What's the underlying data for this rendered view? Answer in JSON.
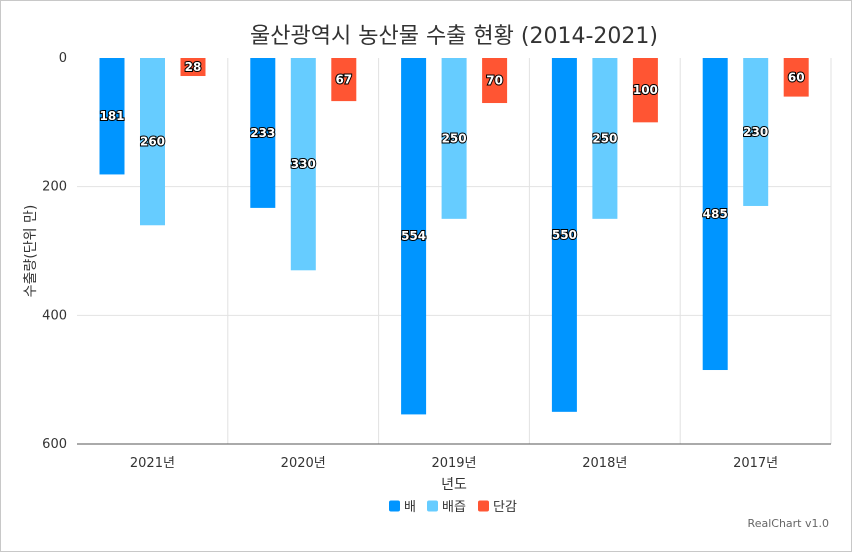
{
  "chart_data": {
    "type": "bar",
    "title": "울산광역시 농산물 수출 현황 (2014-2021)",
    "xlabel": "년도",
    "ylabel": "수출량(단위 만)",
    "categories": [
      "2021년",
      "2020년",
      "2019년",
      "2018년",
      "2017년"
    ],
    "series": [
      {
        "name": "배",
        "color": "#0095ff",
        "values": [
          181,
          233,
          554,
          550,
          485
        ]
      },
      {
        "name": "배즙",
        "color": "#66ccff",
        "values": [
          260,
          330,
          250,
          250,
          230
        ]
      },
      {
        "name": "단감",
        "color": "#ff5533",
        "values": [
          28,
          67,
          70,
          100,
          60
        ]
      }
    ],
    "ylim": [
      0,
      600
    ],
    "yticks": [
      0,
      200,
      400,
      600
    ],
    "y_reversed": true,
    "grid": true,
    "legend_position": "bottom"
  },
  "credit": "RealChart v1.0"
}
